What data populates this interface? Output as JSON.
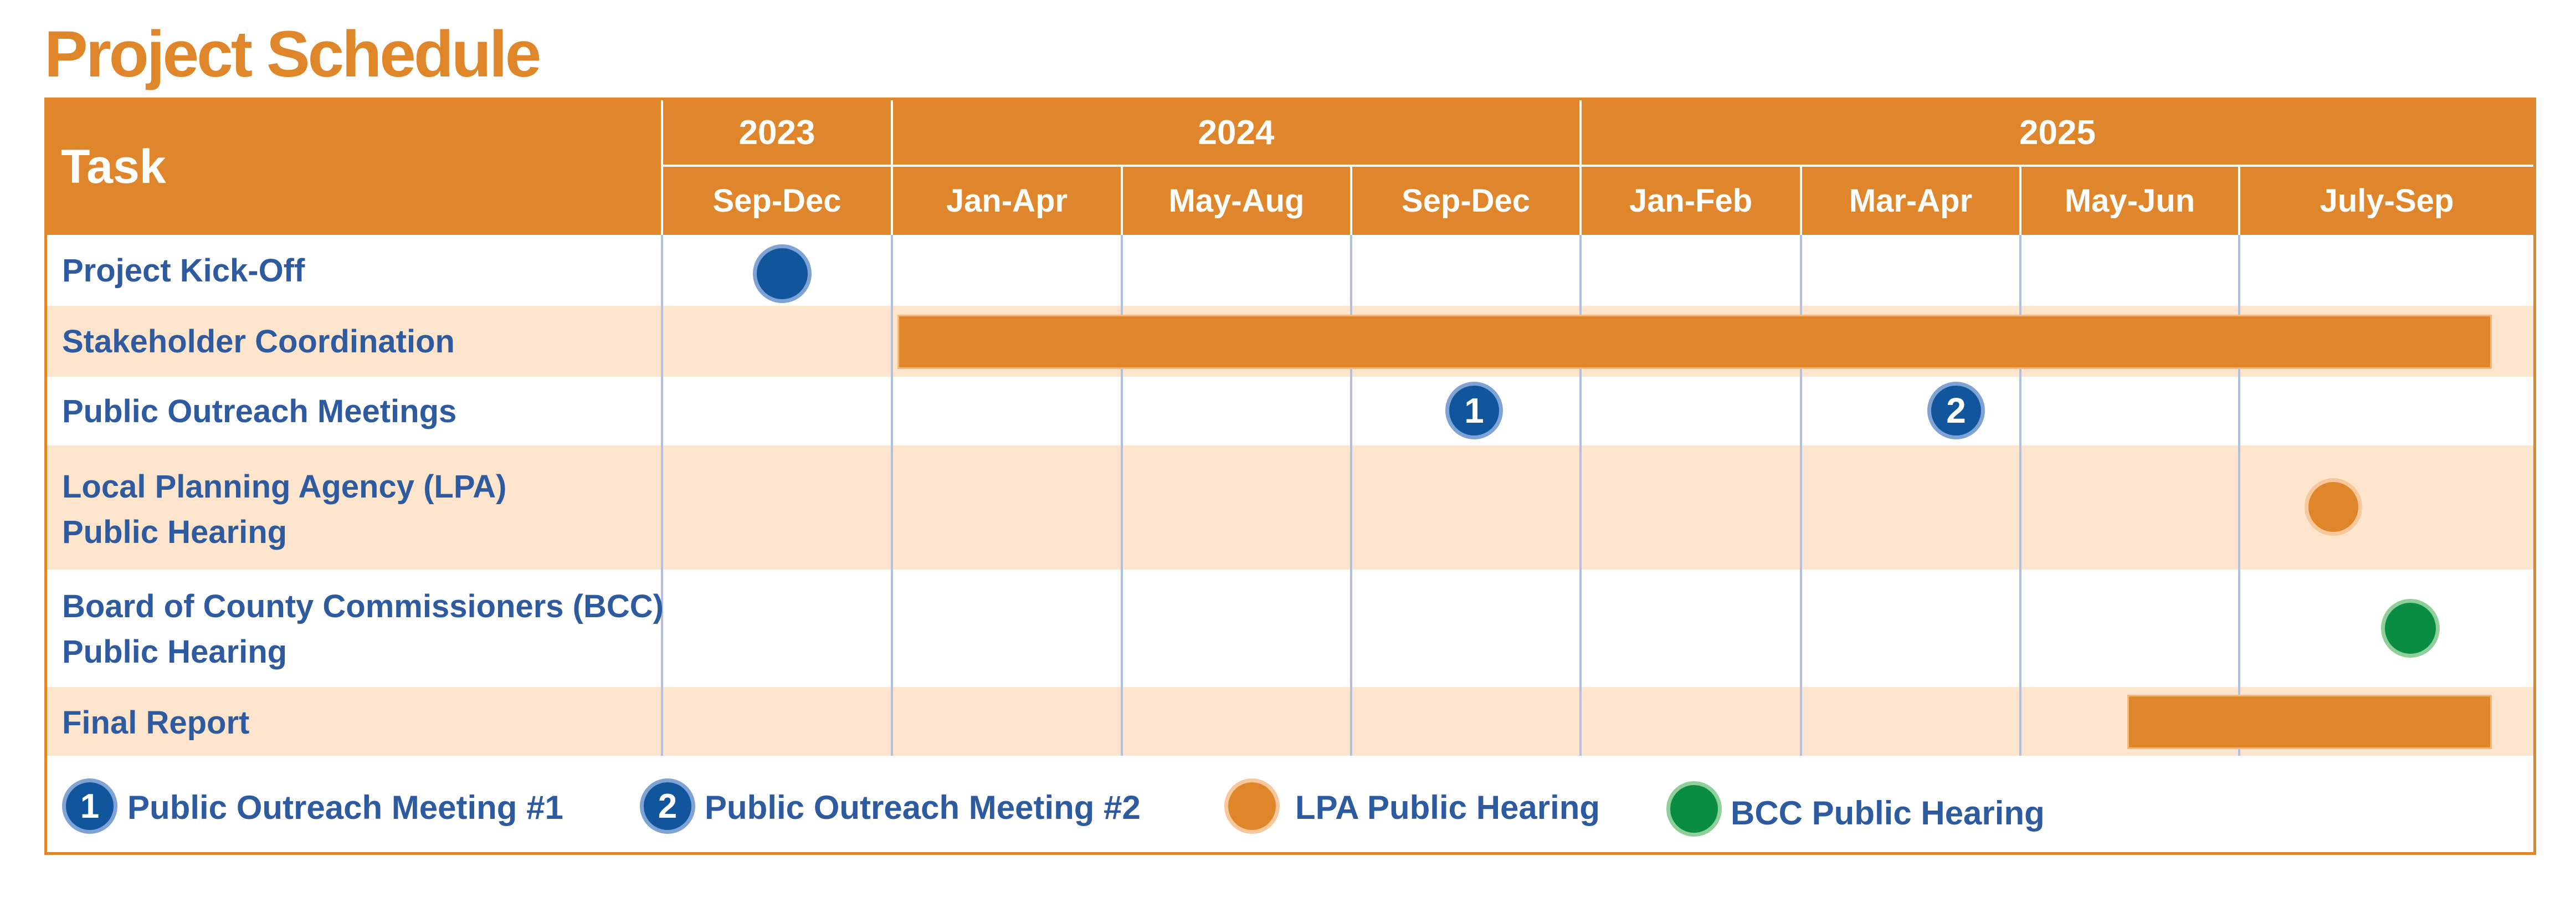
{
  "title": "Project Schedule",
  "header": {
    "task_label": "Task",
    "years": [
      {
        "label": "2023"
      },
      {
        "label": "2024"
      },
      {
        "label": "2025"
      }
    ],
    "periods": [
      {
        "label": "Sep-Dec"
      },
      {
        "label": "Jan-Apr"
      },
      {
        "label": "May-Aug"
      },
      {
        "label": "Sep-Dec"
      },
      {
        "label": "Jan-Feb"
      },
      {
        "label": "Mar-Apr"
      },
      {
        "label": "May-Jun"
      },
      {
        "label": "July-Sep"
      }
    ]
  },
  "tasks": [
    {
      "line1": "Project Kick-Off",
      "line2": ""
    },
    {
      "line1": "Stakeholder Coordination",
      "line2": ""
    },
    {
      "line1": "Public Outreach Meetings",
      "line2": ""
    },
    {
      "line1": "Local Planning Agency (LPA)",
      "line2": "Public Hearing"
    },
    {
      "line1": "Board of County Commissioners (BCC)",
      "line2": "Public Hearing"
    },
    {
      "line1": "Final Report",
      "line2": ""
    }
  ],
  "markers": {
    "meeting1_number": "1",
    "meeting2_number": "2"
  },
  "legend": {
    "meeting1_number": "1",
    "meeting1_label": "Public Outreach Meeting #1",
    "meeting2_number": "2",
    "meeting2_label": "Public Outreach Meeting #2",
    "lpa_label": "LPA Public Hearing",
    "bcc_label": "BCC Public Hearing"
  },
  "colors": {
    "accent_orange": "#e0862a",
    "header_orange": "#df862c",
    "band_peach": "#fde5cd",
    "text_blue": "#2e5aa0",
    "marker_blue": "#11559c",
    "marker_green": "#0a8c43"
  }
}
